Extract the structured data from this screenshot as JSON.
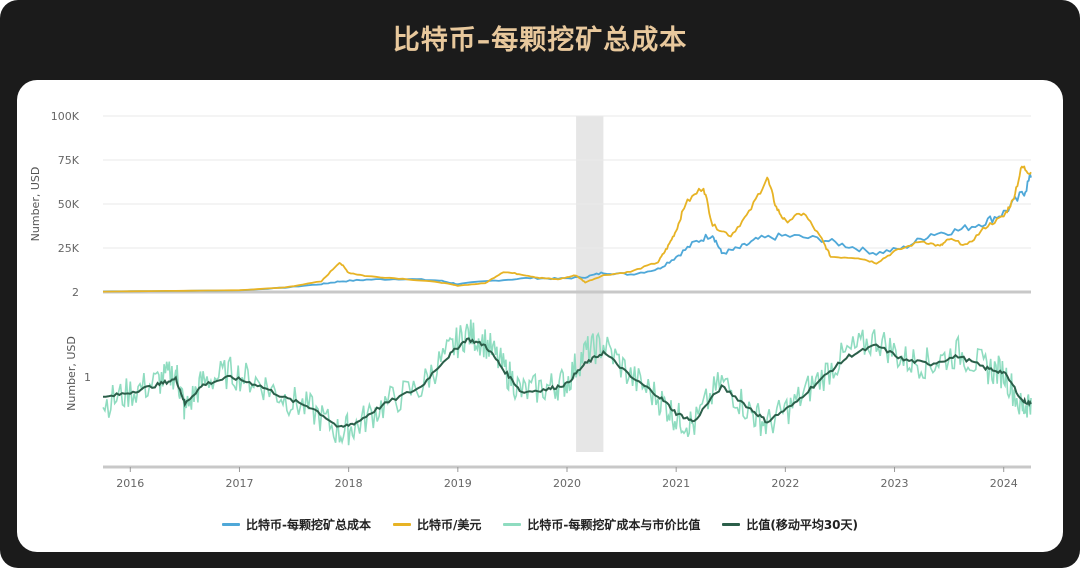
{
  "title": "比特币–每颗挖矿总成本",
  "colors": {
    "cost": "#4fa8d8",
    "price": "#e7b325",
    "ratio": "#8fdcc0",
    "ratio_ma": "#2b5f4a",
    "highlight": "#e6e6e6"
  },
  "chart_data": [
    {
      "type": "line",
      "title": "",
      "ylabel": "Number, USD",
      "ylim": [
        2,
        100000
      ],
      "yticks": [
        "100K",
        "75K",
        "50K",
        "25K",
        "2"
      ],
      "ytick_values": [
        100000,
        75000,
        50000,
        25000,
        2
      ],
      "xlim": [
        "2015-10",
        "2024-04"
      ],
      "grid": true,
      "highlight_range": [
        "2020-02",
        "2020-05"
      ],
      "series": [
        {
          "name": "比特币-每颗挖矿总成本",
          "color": "#4fa8d8",
          "points": [
            [
              "2015-10",
              350
            ],
            [
              "2016-06",
              600
            ],
            [
              "2017-01",
              900
            ],
            [
              "2017-06",
              2500
            ],
            [
              "2017-10",
              4500
            ],
            [
              "2017-12",
              6000
            ],
            [
              "2018-03",
              7000
            ],
            [
              "2018-07",
              7500
            ],
            [
              "2018-11",
              6500
            ],
            [
              "2019-01",
              4500
            ],
            [
              "2019-05",
              6500
            ],
            [
              "2019-09",
              8000
            ],
            [
              "2019-12",
              7500
            ],
            [
              "2020-03",
              8500
            ],
            [
              "2020-05",
              11000
            ],
            [
              "2020-08",
              10000
            ],
            [
              "2020-11",
              13000
            ],
            [
              "2021-01",
              20000
            ],
            [
              "2021-03",
              28000
            ],
            [
              "2021-05",
              33000
            ],
            [
              "2021-06",
              22000
            ],
            [
              "2021-08",
              25000
            ],
            [
              "2021-10",
              30000
            ],
            [
              "2022-01",
              32000
            ],
            [
              "2022-05",
              30000
            ],
            [
              "2022-08",
              26000
            ],
            [
              "2022-11",
              22000
            ],
            [
              "2023-02",
              25000
            ],
            [
              "2023-05",
              33000
            ],
            [
              "2023-08",
              35000
            ],
            [
              "2023-11",
              40000
            ],
            [
              "2024-01",
              45000
            ],
            [
              "2024-03",
              55000
            ],
            [
              "2024-04",
              65000
            ]
          ]
        },
        {
          "name": "比特币/美元",
          "color": "#e7b325",
          "points": [
            [
              "2015-10",
              250
            ],
            [
              "2016-06",
              650
            ],
            [
              "2017-01",
              1000
            ],
            [
              "2017-06",
              2600
            ],
            [
              "2017-10",
              6000
            ],
            [
              "2017-12",
              17000
            ],
            [
              "2018-01",
              11000
            ],
            [
              "2018-03",
              9000
            ],
            [
              "2018-07",
              7500
            ],
            [
              "2018-11",
              5500
            ],
            [
              "2019-01",
              3600
            ],
            [
              "2019-04",
              5000
            ],
            [
              "2019-06",
              11500
            ],
            [
              "2019-08",
              10000
            ],
            [
              "2019-10",
              8000
            ],
            [
              "2019-12",
              7200
            ],
            [
              "2020-02",
              9500
            ],
            [
              "2020-03",
              5500
            ],
            [
              "2020-05",
              9500
            ],
            [
              "2020-08",
              11500
            ],
            [
              "2020-11",
              17000
            ],
            [
              "2020-12",
              25000
            ],
            [
              "2021-01",
              35000
            ],
            [
              "2021-02",
              50000
            ],
            [
              "2021-04",
              60000
            ],
            [
              "2021-05",
              38000
            ],
            [
              "2021-07",
              32000
            ],
            [
              "2021-09",
              45000
            ],
            [
              "2021-11",
              65000
            ],
            [
              "2021-12",
              48000
            ],
            [
              "2022-01",
              40000
            ],
            [
              "2022-03",
              45000
            ],
            [
              "2022-05",
              30000
            ],
            [
              "2022-06",
              20000
            ],
            [
              "2022-09",
              19500
            ],
            [
              "2022-11",
              16500
            ],
            [
              "2023-01",
              23000
            ],
            [
              "2023-04",
              29000
            ],
            [
              "2023-06",
              26000
            ],
            [
              "2023-07",
              30000
            ],
            [
              "2023-09",
              26500
            ],
            [
              "2023-11",
              37000
            ],
            [
              "2024-01",
              43000
            ],
            [
              "2024-02",
              52000
            ],
            [
              "2024-03",
              71000
            ],
            [
              "2024-04",
              68000
            ]
          ]
        }
      ]
    },
    {
      "type": "line",
      "title": "",
      "ylabel": "Number, USD",
      "yticks": [
        "1"
      ],
      "ytick_values": [
        1
      ],
      "scale": "log",
      "ylim": [
        0.45,
        2.2
      ],
      "xlim": [
        "2015-10",
        "2024-04"
      ],
      "xticks": [
        "2016",
        "2017",
        "2018",
        "2019",
        "2020",
        "2021",
        "2022",
        "2023",
        "2024"
      ],
      "series": [
        {
          "name": "比特币-每颗挖矿成本与市价比值",
          "color": "#8fdcc0",
          "points": [
            [
              "2015-10",
              0.75
            ],
            [
              "2016-01",
              0.85
            ],
            [
              "2016-04",
              0.95
            ],
            [
              "2016-06",
              1.05
            ],
            [
              "2016-07",
              0.7
            ],
            [
              "2016-09",
              0.95
            ],
            [
              "2016-12",
              1.05
            ],
            [
              "2017-03",
              0.95
            ],
            [
              "2017-06",
              0.8
            ],
            [
              "2017-09",
              0.7
            ],
            [
              "2017-12",
              0.55
            ],
            [
              "2018-02",
              0.6
            ],
            [
              "2018-05",
              0.75
            ],
            [
              "2018-09",
              0.9
            ],
            [
              "2018-12",
              1.3
            ],
            [
              "2019-02",
              1.6
            ],
            [
              "2019-04",
              1.45
            ],
            [
              "2019-06",
              1.1
            ],
            [
              "2019-08",
              0.85
            ],
            [
              "2019-11",
              0.9
            ],
            [
              "2020-01",
              0.95
            ],
            [
              "2020-03",
              1.3
            ],
            [
              "2020-05",
              1.4
            ],
            [
              "2020-08",
              1.0
            ],
            [
              "2020-11",
              0.8
            ],
            [
              "2021-01",
              0.65
            ],
            [
              "2021-03",
              0.6
            ],
            [
              "2021-06",
              0.95
            ],
            [
              "2021-09",
              0.7
            ],
            [
              "2021-11",
              0.6
            ],
            [
              "2022-02",
              0.75
            ],
            [
              "2022-05",
              1.0
            ],
            [
              "2022-08",
              1.3
            ],
            [
              "2022-11",
              1.5
            ],
            [
              "2023-02",
              1.2
            ],
            [
              "2023-05",
              1.15
            ],
            [
              "2023-08",
              1.3
            ],
            [
              "2023-11",
              1.1
            ],
            [
              "2024-01",
              1.05
            ],
            [
              "2024-03",
              0.7
            ],
            [
              "2024-04",
              0.8
            ]
          ]
        },
        {
          "name": "比值(移动平均30天)",
          "color": "#2b5f4a",
          "points": [
            [
              "2015-10",
              0.8
            ],
            [
              "2016-01",
              0.85
            ],
            [
              "2016-04",
              0.92
            ],
            [
              "2016-06",
              0.98
            ],
            [
              "2016-07",
              0.75
            ],
            [
              "2016-09",
              0.92
            ],
            [
              "2016-12",
              1.0
            ],
            [
              "2017-03",
              0.92
            ],
            [
              "2017-06",
              0.8
            ],
            [
              "2017-09",
              0.72
            ],
            [
              "2017-12",
              0.58
            ],
            [
              "2018-02",
              0.62
            ],
            [
              "2018-05",
              0.75
            ],
            [
              "2018-09",
              0.9
            ],
            [
              "2018-12",
              1.25
            ],
            [
              "2019-02",
              1.5
            ],
            [
              "2019-04",
              1.4
            ],
            [
              "2019-06",
              1.08
            ],
            [
              "2019-08",
              0.85
            ],
            [
              "2019-11",
              0.88
            ],
            [
              "2020-01",
              0.93
            ],
            [
              "2020-03",
              1.15
            ],
            [
              "2020-05",
              1.3
            ],
            [
              "2020-08",
              1.0
            ],
            [
              "2020-11",
              0.82
            ],
            [
              "2021-01",
              0.68
            ],
            [
              "2021-03",
              0.62
            ],
            [
              "2021-06",
              0.9
            ],
            [
              "2021-09",
              0.72
            ],
            [
              "2021-11",
              0.62
            ],
            [
              "2022-02",
              0.75
            ],
            [
              "2022-05",
              0.98
            ],
            [
              "2022-08",
              1.25
            ],
            [
              "2022-11",
              1.4
            ],
            [
              "2023-02",
              1.2
            ],
            [
              "2023-05",
              1.15
            ],
            [
              "2023-08",
              1.25
            ],
            [
              "2023-11",
              1.1
            ],
            [
              "2024-01",
              1.05
            ],
            [
              "2024-03",
              0.78
            ],
            [
              "2024-04",
              0.75
            ]
          ]
        }
      ]
    }
  ],
  "legend": [
    {
      "label": "比特币-每颗挖矿总成本",
      "color": "#4fa8d8"
    },
    {
      "label": "比特币/美元",
      "color": "#e7b325"
    },
    {
      "label": "比特币-每颗挖矿成本与市价比值",
      "color": "#8fdcc0"
    },
    {
      "label": "比值(移动平均30天)",
      "color": "#2b5f4a"
    }
  ]
}
